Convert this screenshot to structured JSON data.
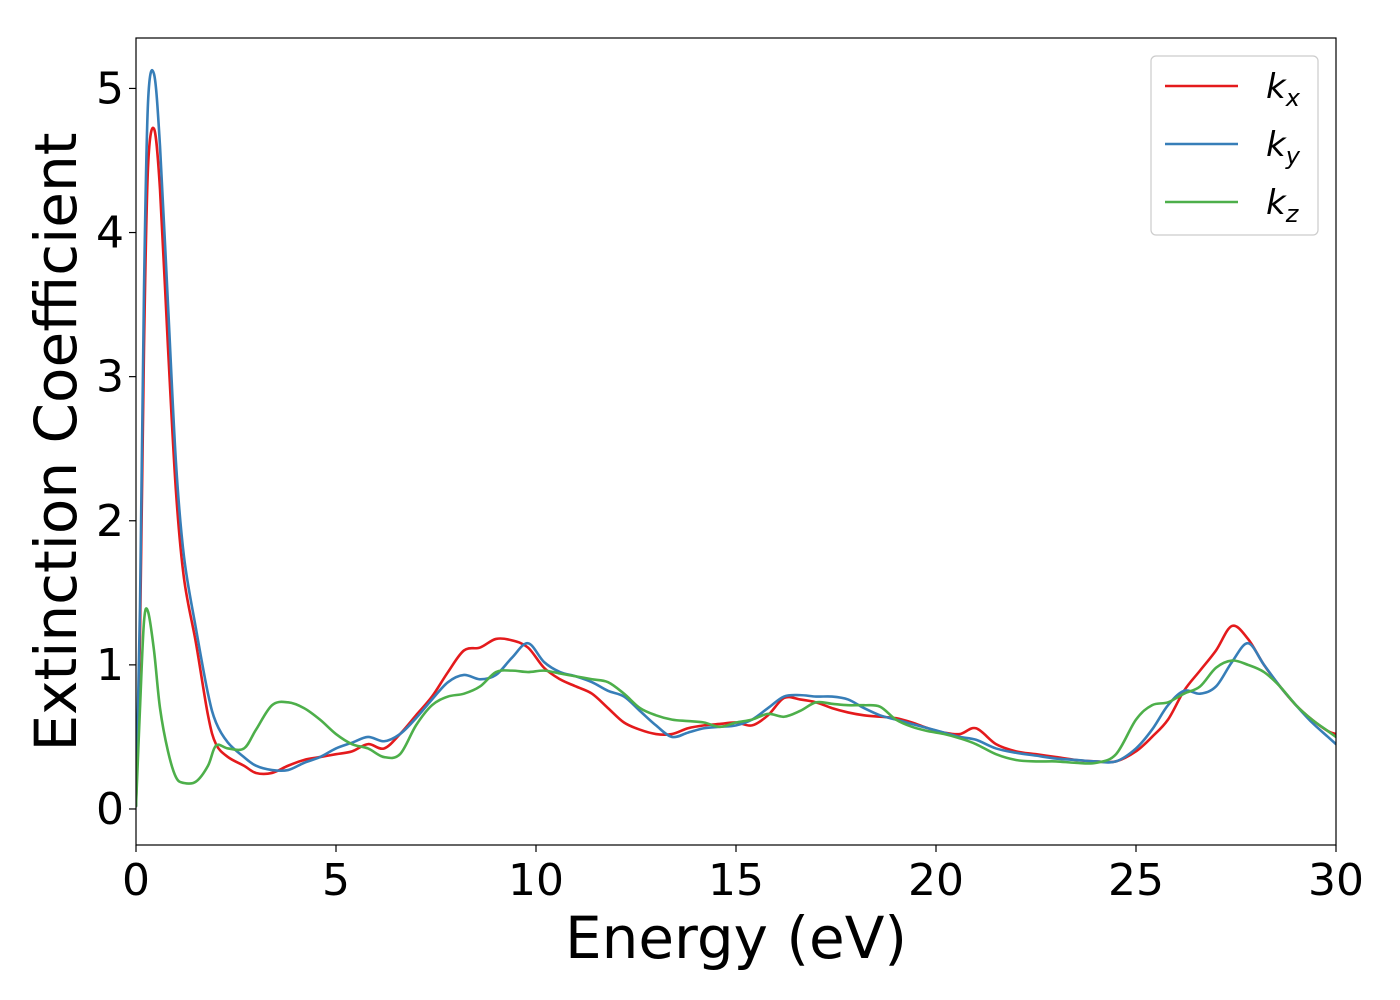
{
  "chart_data": {
    "type": "line",
    "xlabel": "Energy (eV)",
    "ylabel": "Extinction Coefficient",
    "xlim": [
      0,
      30
    ],
    "ylim": [
      -0.25,
      5.35
    ],
    "xticks": [
      0,
      5,
      10,
      15,
      20,
      25,
      30
    ],
    "yticks": [
      0,
      1,
      2,
      3,
      4,
      5
    ],
    "grid": false,
    "legend_position": "top-right",
    "x": [
      0,
      0.1,
      0.2,
      0.3,
      0.45,
      0.6,
      0.8,
      1.0,
      1.2,
      1.5,
      1.8,
      2.0,
      2.3,
      2.7,
      3.0,
      3.4,
      3.8,
      4.2,
      4.6,
      5.0,
      5.4,
      5.8,
      6.2,
      6.6,
      7.0,
      7.4,
      7.8,
      8.2,
      8.6,
      9.0,
      9.4,
      9.8,
      10.2,
      10.6,
      11.0,
      11.4,
      11.8,
      12.2,
      12.6,
      13.0,
      13.4,
      13.8,
      14.2,
      14.6,
      15.0,
      15.4,
      15.8,
      16.2,
      16.6,
      17.0,
      17.4,
      17.8,
      18.2,
      18.6,
      19.0,
      19.4,
      19.8,
      20.2,
      20.6,
      21.0,
      21.5,
      22.0,
      22.5,
      23.0,
      23.5,
      24.0,
      24.5,
      25.0,
      25.4,
      25.8,
      26.2,
      26.6,
      27.0,
      27.4,
      27.8,
      28.2,
      28.6,
      29.0,
      29.4,
      29.8,
      30.0
    ],
    "series": [
      {
        "name": "k_x",
        "label_base": "k",
        "label_sub": "x",
        "color": "#e41a1c",
        "values": [
          0.02,
          1.2,
          3.2,
          4.45,
          4.72,
          4.3,
          3.2,
          2.2,
          1.6,
          1.15,
          0.65,
          0.45,
          0.36,
          0.3,
          0.25,
          0.25,
          0.3,
          0.34,
          0.36,
          0.38,
          0.4,
          0.45,
          0.42,
          0.52,
          0.65,
          0.78,
          0.95,
          1.1,
          1.12,
          1.18,
          1.17,
          1.12,
          0.98,
          0.9,
          0.85,
          0.8,
          0.7,
          0.6,
          0.55,
          0.52,
          0.52,
          0.56,
          0.58,
          0.59,
          0.6,
          0.58,
          0.65,
          0.77,
          0.76,
          0.74,
          0.7,
          0.67,
          0.65,
          0.64,
          0.63,
          0.6,
          0.56,
          0.53,
          0.52,
          0.56,
          0.45,
          0.4,
          0.38,
          0.36,
          0.34,
          0.33,
          0.33,
          0.4,
          0.5,
          0.62,
          0.82,
          0.96,
          1.1,
          1.27,
          1.18,
          1.0,
          0.85,
          0.72,
          0.62,
          0.54,
          0.52
        ]
      },
      {
        "name": "k_y",
        "label_base": "k",
        "label_sub": "y",
        "color": "#377eb8",
        "values": [
          0.02,
          1.4,
          3.6,
          4.9,
          5.1,
          4.6,
          3.5,
          2.4,
          1.75,
          1.25,
          0.8,
          0.6,
          0.46,
          0.36,
          0.3,
          0.27,
          0.27,
          0.32,
          0.36,
          0.42,
          0.46,
          0.5,
          0.47,
          0.52,
          0.63,
          0.76,
          0.88,
          0.93,
          0.9,
          0.93,
          1.05,
          1.15,
          1.02,
          0.95,
          0.92,
          0.88,
          0.82,
          0.78,
          0.68,
          0.58,
          0.5,
          0.53,
          0.56,
          0.57,
          0.58,
          0.62,
          0.7,
          0.78,
          0.79,
          0.78,
          0.78,
          0.76,
          0.7,
          0.65,
          0.62,
          0.59,
          0.56,
          0.53,
          0.5,
          0.48,
          0.42,
          0.39,
          0.37,
          0.35,
          0.34,
          0.33,
          0.33,
          0.42,
          0.55,
          0.72,
          0.82,
          0.8,
          0.85,
          1.02,
          1.15,
          1.0,
          0.85,
          0.72,
          0.6,
          0.5,
          0.45
        ]
      },
      {
        "name": "k_z",
        "label_base": "k",
        "label_sub": "z",
        "color": "#4daf4a",
        "values": [
          0.02,
          0.7,
          1.3,
          1.37,
          1.1,
          0.7,
          0.4,
          0.22,
          0.18,
          0.19,
          0.3,
          0.44,
          0.42,
          0.42,
          0.55,
          0.72,
          0.74,
          0.7,
          0.62,
          0.52,
          0.45,
          0.42,
          0.36,
          0.38,
          0.58,
          0.72,
          0.78,
          0.8,
          0.85,
          0.95,
          0.96,
          0.95,
          0.96,
          0.94,
          0.92,
          0.9,
          0.88,
          0.8,
          0.7,
          0.65,
          0.62,
          0.61,
          0.6,
          0.57,
          0.6,
          0.62,
          0.66,
          0.64,
          0.68,
          0.74,
          0.73,
          0.72,
          0.72,
          0.71,
          0.62,
          0.57,
          0.54,
          0.52,
          0.49,
          0.45,
          0.38,
          0.34,
          0.33,
          0.33,
          0.32,
          0.32,
          0.38,
          0.62,
          0.72,
          0.74,
          0.8,
          0.85,
          0.98,
          1.03,
          1.0,
          0.95,
          0.85,
          0.72,
          0.62,
          0.54,
          0.5
        ]
      }
    ]
  }
}
